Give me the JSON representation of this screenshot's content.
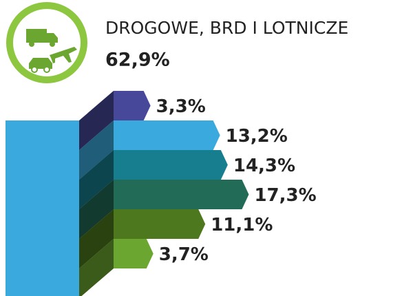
{
  "chart_data": {
    "type": "bar",
    "orientation": "horizontal",
    "title": "DROGOWE, BRD I LOTNICZE",
    "total": {
      "value": 62.9,
      "label": "62,9%"
    },
    "values": [
      3.3,
      13.2,
      14.3,
      17.3,
      11.1,
      3.7
    ],
    "value_labels": [
      "3,3%",
      "13,2%",
      "14,3%",
      "17,3%",
      "11,1%",
      "3,7%"
    ],
    "colors": [
      "#48489a",
      "#3aa9dd",
      "#167e8f",
      "#226b56",
      "#4e781d",
      "#6ba631"
    ]
  }
}
